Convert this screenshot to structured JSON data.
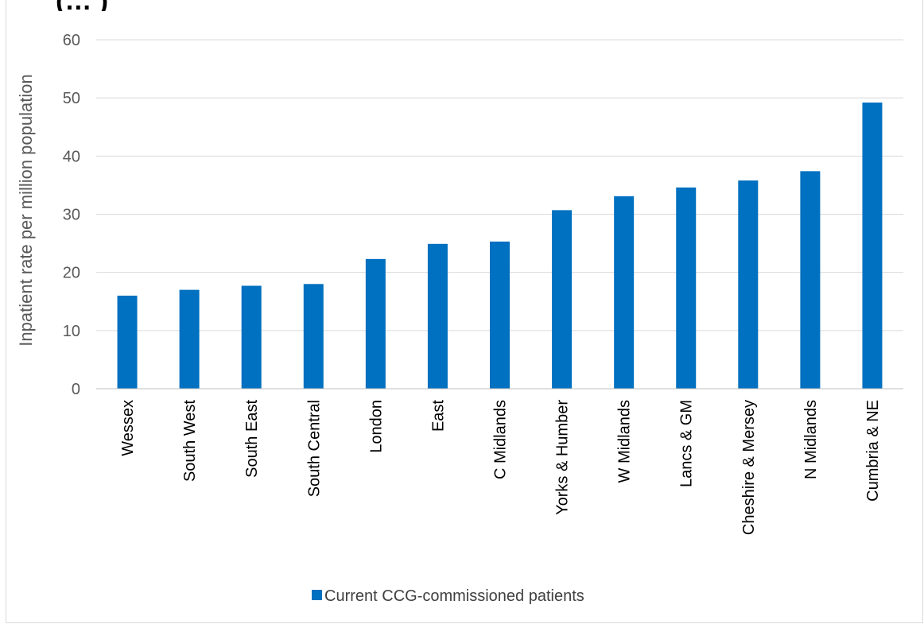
{
  "chart_data": {
    "type": "bar",
    "title": "(… )",
    "ylabel": "Inpatient rate per million population",
    "xlabel": "",
    "ylim": [
      0,
      60
    ],
    "yticks": [
      0,
      10,
      20,
      30,
      40,
      50,
      60
    ],
    "grid": true,
    "legend_position": "bottom",
    "categories": [
      "Wessex",
      "South West",
      "South East",
      "South Central",
      "London",
      "East",
      "C Midlands",
      "Yorks & Humber",
      "W Midlands",
      "Lancs & GM",
      "Cheshire & Mersey",
      "N Midlands",
      "Cumbria & NE"
    ],
    "series": [
      {
        "name": "Current CCG-commissioned patients",
        "color": "#0070c0",
        "values": [
          16.0,
          17.0,
          17.7,
          18.0,
          22.3,
          24.9,
          25.3,
          30.7,
          33.1,
          34.6,
          35.8,
          37.4,
          49.2
        ]
      }
    ]
  }
}
